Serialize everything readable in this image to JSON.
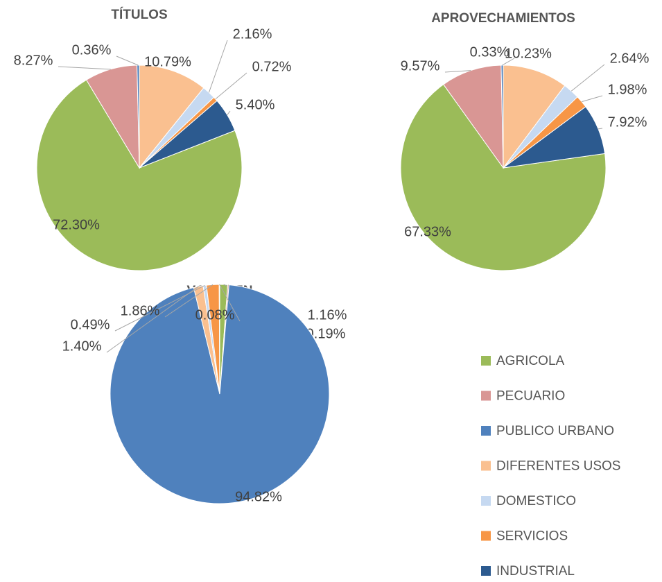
{
  "chart_data": [
    {
      "type": "pie",
      "title": "TÍTULOS",
      "categories": [
        "AGRICOLA",
        "PECUARIO",
        "PUBLICO URBANO",
        "DIFERENTES USOS",
        "DOMESTICO",
        "SERVICIOS",
        "INDUSTRIAL"
      ],
      "values": [
        72.3,
        8.27,
        0.36,
        10.79,
        2.16,
        0.72,
        5.4
      ],
      "value_labels": [
        "72.30%",
        "8.27%",
        "0.36%",
        "10.79%",
        "2.16%",
        "0.72%",
        "5.40%"
      ],
      "colors": [
        "#9bbb59",
        "#d99694",
        "#4f81bd",
        "#fac090",
        "#c6d9f1",
        "#f79646",
        "#2c5a8f"
      ],
      "start_angle": 68.65
    },
    {
      "type": "pie",
      "title": "APROVECHAMIENTOS",
      "categories": [
        "AGRICOLA",
        "PECUARIO",
        "PUBLICO URBANO",
        "DIFERENTES USOS",
        "DOMESTICO",
        "SERVICIOS",
        "INDUSTRIAL"
      ],
      "values": [
        67.33,
        9.57,
        0.33,
        10.23,
        2.64,
        1.98,
        7.92
      ],
      "value_labels": [
        "67.33%",
        "9.57%",
        "0.33%",
        "10.23%",
        "2.64%",
        "1.98%",
        "7.92%"
      ],
      "colors": [
        "#9bbb59",
        "#d99694",
        "#4f81bd",
        "#fac090",
        "#c6d9f1",
        "#f79646",
        "#2c5a8f"
      ],
      "start_angle": 81.97
    },
    {
      "type": "pie",
      "title": "VOLUMEN",
      "categories": [
        "AGRICOLA",
        "PECUARIO",
        "PUBLICO URBANO",
        "DIFERENTES USOS",
        "DOMESTICO",
        "SERVICIOS",
        "INDUSTRIAL"
      ],
      "values": [
        1.16,
        0.19,
        94.82,
        1.4,
        0.49,
        1.86,
        0.08
      ],
      "value_labels": [
        "1.16%",
        "0.19%",
        "94.82%",
        "1.40%",
        "0.49%",
        "1.86%",
        "0.08%"
      ],
      "colors": [
        "#9bbb59",
        "#d99694",
        "#4f81bd",
        "#fac090",
        "#c6d9f1",
        "#f79646",
        "#2c5a8f"
      ],
      "start_angle": 0,
      "legend": "right"
    }
  ]
}
